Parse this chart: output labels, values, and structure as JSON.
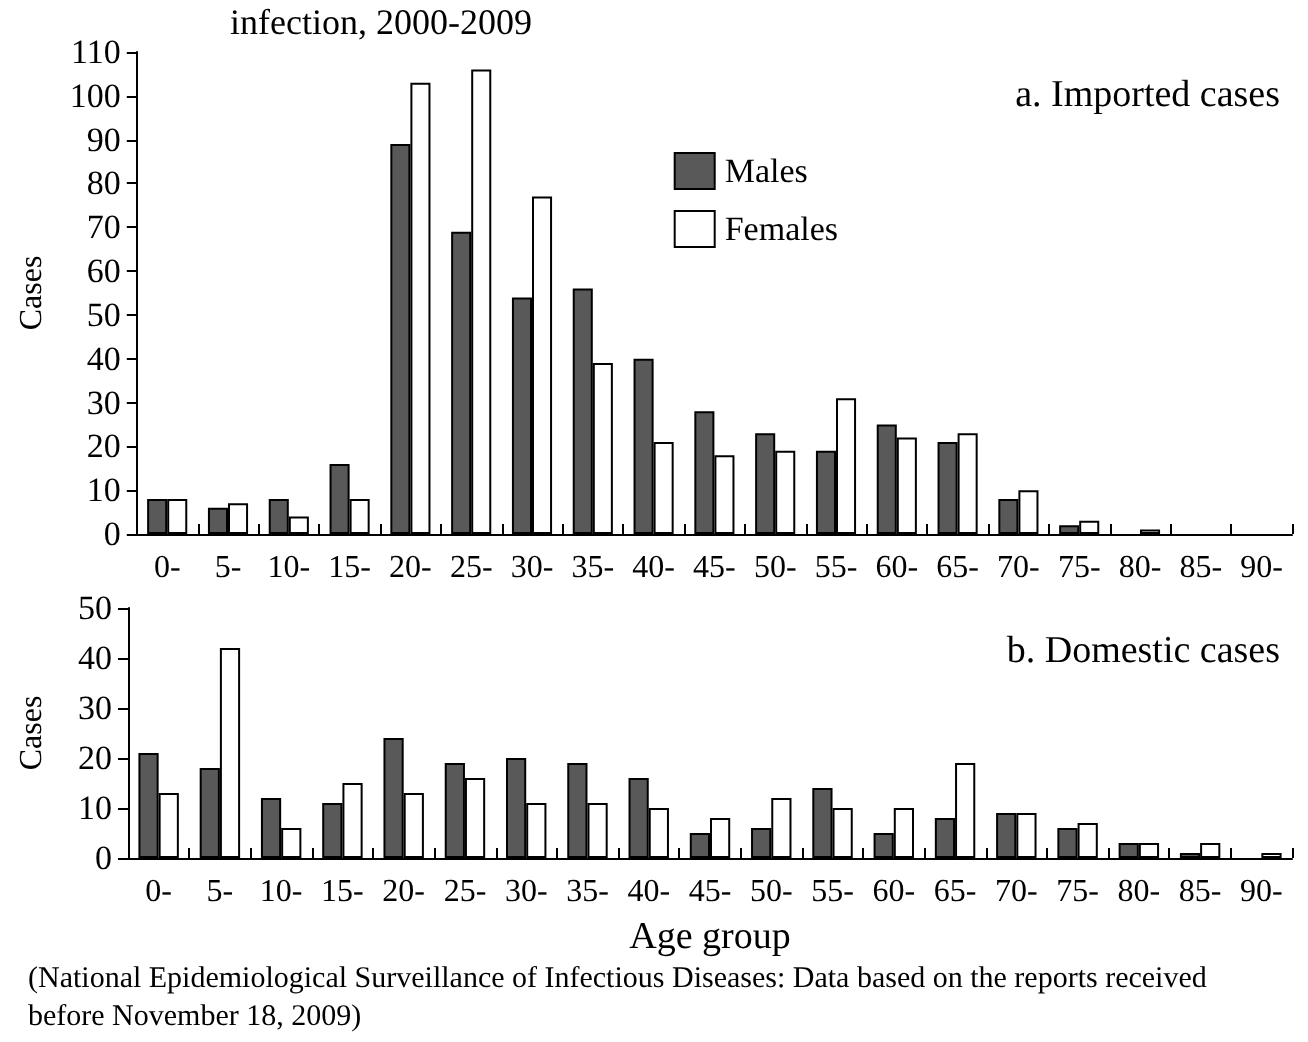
{
  "chart_data": [
    {
      "type": "bar",
      "title": "a. Imported cases",
      "ylabel": "Cases",
      "annotations": [
        "infection, 2000-2009"
      ],
      "categories": [
        "0-",
        "5-",
        "10-",
        "15-",
        "20-",
        "25-",
        "30-",
        "35-",
        "40-",
        "45-",
        "50-",
        "55-",
        "60-",
        "65-",
        "70-",
        "75-",
        "80-",
        "85-",
        "90-"
      ],
      "series": [
        {
          "name": "Males",
          "color": "#595959",
          "values": [
            8,
            6,
            8,
            16,
            89,
            69,
            54,
            56,
            40,
            28,
            23,
            19,
            25,
            21,
            8,
            2,
            0,
            0,
            0
          ]
        },
        {
          "name": "Females",
          "color": "#ffffff",
          "values": [
            8,
            7,
            4,
            8,
            103,
            106,
            77,
            39,
            21,
            18,
            19,
            31,
            22,
            23,
            10,
            3,
            1,
            0,
            0
          ]
        }
      ],
      "ylim": [
        0,
        110
      ],
      "yticks": [
        0,
        10,
        20,
        30,
        40,
        50,
        60,
        70,
        80,
        90,
        100,
        110
      ],
      "legend": "top right"
    },
    {
      "type": "bar",
      "title": "b. Domestic cases",
      "xlabel": "Age group",
      "ylabel": "Cases",
      "annotations": [
        "(National Epidemiological Surveillance of Infectious Diseases: Data based on the reports received before November 18, 2009)"
      ],
      "categories": [
        "0-",
        "5-",
        "10-",
        "15-",
        "20-",
        "25-",
        "30-",
        "35-",
        "40-",
        "45-",
        "50-",
        "55-",
        "60-",
        "65-",
        "70-",
        "75-",
        "80-",
        "85-",
        "90-"
      ],
      "series": [
        {
          "color": "#595959",
          "values": [
            21,
            18,
            12,
            11,
            24,
            19,
            20,
            19,
            16,
            5,
            6,
            14,
            5,
            8,
            9,
            6,
            3,
            1,
            0
          ]
        },
        {
          "color": "#ffffff",
          "values": [
            13,
            42,
            6,
            15,
            13,
            16,
            11,
            11,
            10,
            8,
            12,
            10,
            10,
            19,
            9,
            7,
            3,
            3,
            1
          ]
        }
      ],
      "ylim": [
        0,
        50
      ],
      "yticks": [
        0,
        10,
        20,
        30,
        40,
        50
      ]
    }
  ]
}
